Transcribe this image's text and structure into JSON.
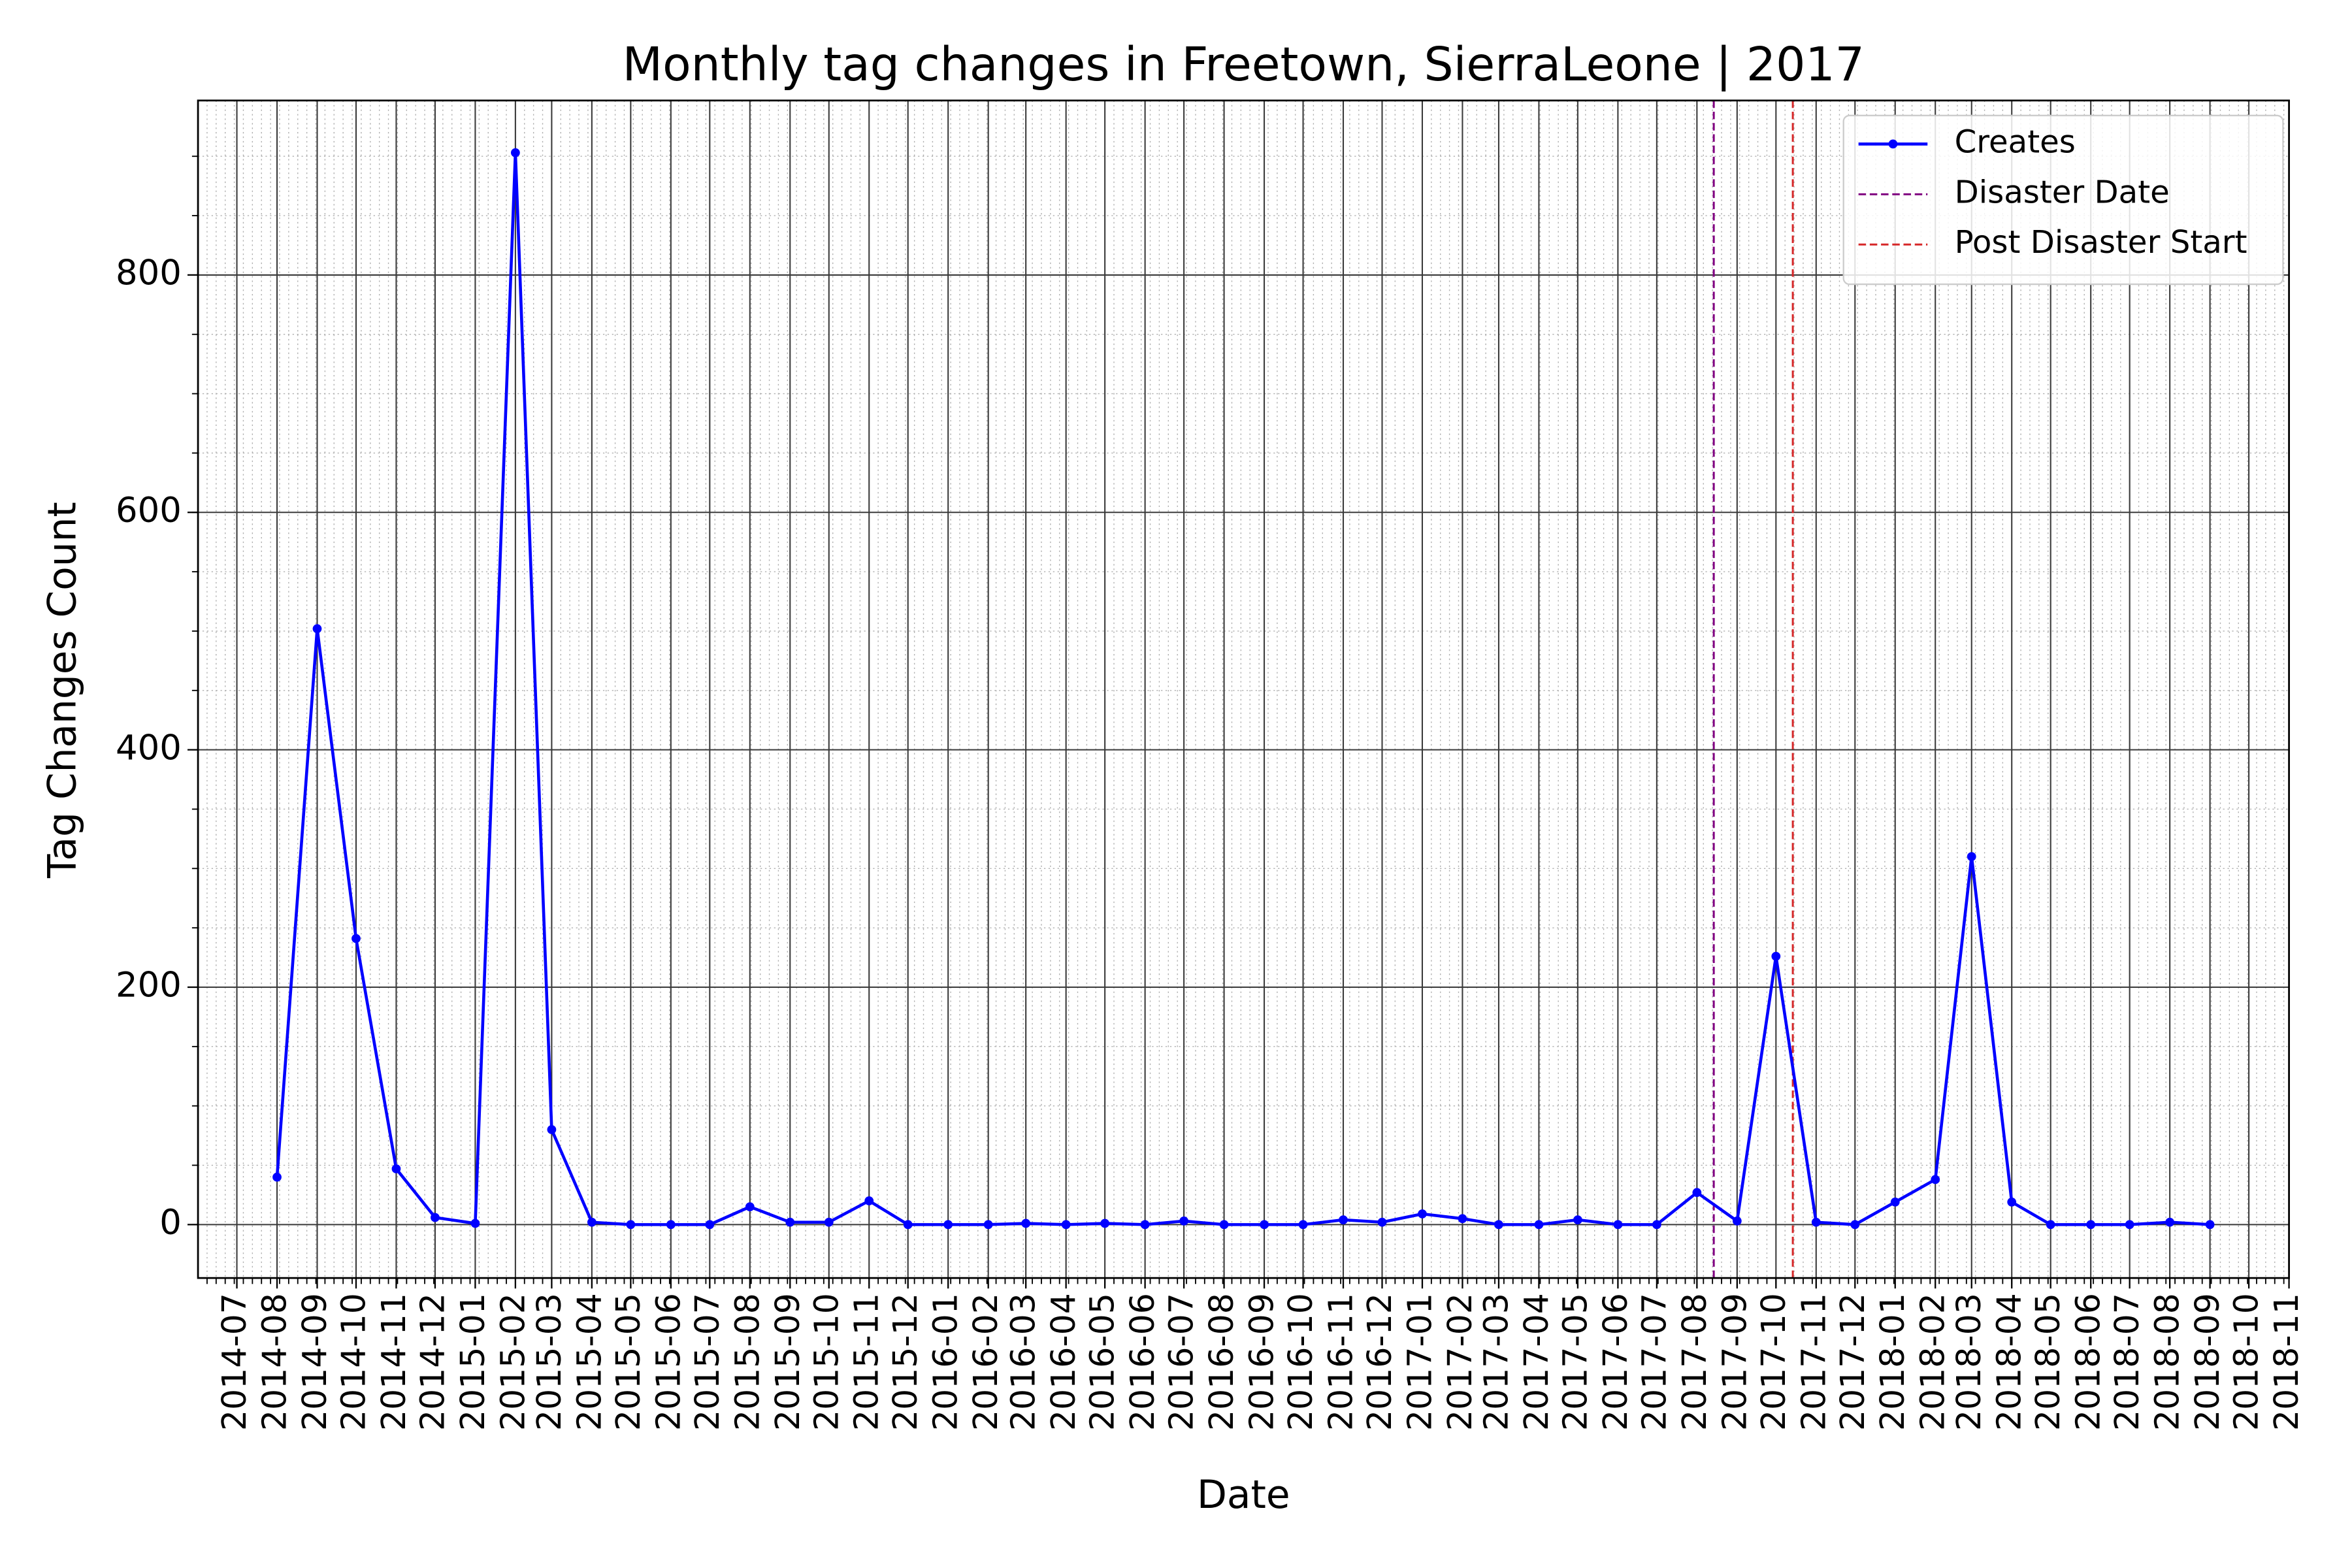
{
  "chart_data": {
    "type": "line",
    "title": "Monthly tag changes in Freetown, SierraLeone | 2017",
    "xlabel": "Date",
    "ylabel": "Tag Changes Count",
    "x": [
      "2014-08",
      "2014-09",
      "2014-10",
      "2014-11",
      "2014-12",
      "2015-01",
      "2015-02",
      "2015-03",
      "2015-04",
      "2015-05",
      "2015-06",
      "2015-07",
      "2015-08",
      "2015-09",
      "2015-10",
      "2015-11",
      "2015-12",
      "2016-01",
      "2016-02",
      "2016-03",
      "2016-04",
      "2016-05",
      "2016-06",
      "2016-07",
      "2016-08",
      "2016-09",
      "2016-10",
      "2016-11",
      "2016-12",
      "2017-01",
      "2017-02",
      "2017-03",
      "2017-04",
      "2017-05",
      "2017-06",
      "2017-07",
      "2017-08",
      "2017-09",
      "2017-10",
      "2017-11",
      "2017-12",
      "2018-01",
      "2018-02",
      "2018-03",
      "2018-04",
      "2018-05",
      "2018-06",
      "2018-07",
      "2018-08",
      "2018-09"
    ],
    "series": [
      {
        "name": "Creates",
        "color": "#0000ff",
        "values": [
          40,
          502,
          241,
          47,
          6,
          1,
          903,
          80,
          2,
          0,
          0,
          0,
          15,
          2,
          2,
          20,
          0,
          0,
          0,
          1,
          0,
          1,
          0,
          3,
          0,
          0,
          0,
          4,
          2,
          9,
          5,
          0,
          0,
          4,
          0,
          0,
          27,
          3,
          226,
          2,
          0,
          19,
          38,
          310,
          19,
          0,
          0,
          0,
          2,
          0
        ]
      }
    ],
    "vlines": [
      {
        "name": "Disaster Date",
        "x": "2017-08-14",
        "color": "#800080"
      },
      {
        "name": "Post Disaster Start",
        "x": "2017-10-14",
        "color": "#d62728"
      }
    ],
    "xlim": [
      "2014-06",
      "2018-11"
    ],
    "xticks": [
      "2014-07",
      "2014-08",
      "2014-09",
      "2014-10",
      "2014-11",
      "2014-12",
      "2015-01",
      "2015-02",
      "2015-03",
      "2015-04",
      "2015-05",
      "2015-06",
      "2015-07",
      "2015-08",
      "2015-09",
      "2015-10",
      "2015-11",
      "2015-12",
      "2016-01",
      "2016-02",
      "2016-03",
      "2016-04",
      "2016-05",
      "2016-06",
      "2016-07",
      "2016-08",
      "2016-09",
      "2016-10",
      "2016-11",
      "2016-12",
      "2017-01",
      "2017-02",
      "2017-03",
      "2017-04",
      "2017-05",
      "2017-06",
      "2017-07",
      "2017-08",
      "2017-09",
      "2017-10",
      "2017-11",
      "2017-12",
      "2018-01",
      "2018-02",
      "2018-03",
      "2018-04",
      "2018-05",
      "2018-06",
      "2018-07",
      "2018-08",
      "2018-09",
      "2018-10",
      "2018-11"
    ],
    "ylim": [
      -45,
      947
    ],
    "yticks": [
      0,
      200,
      400,
      600,
      800
    ],
    "grid": true,
    "minor_grid": true,
    "legend": "upper right"
  }
}
